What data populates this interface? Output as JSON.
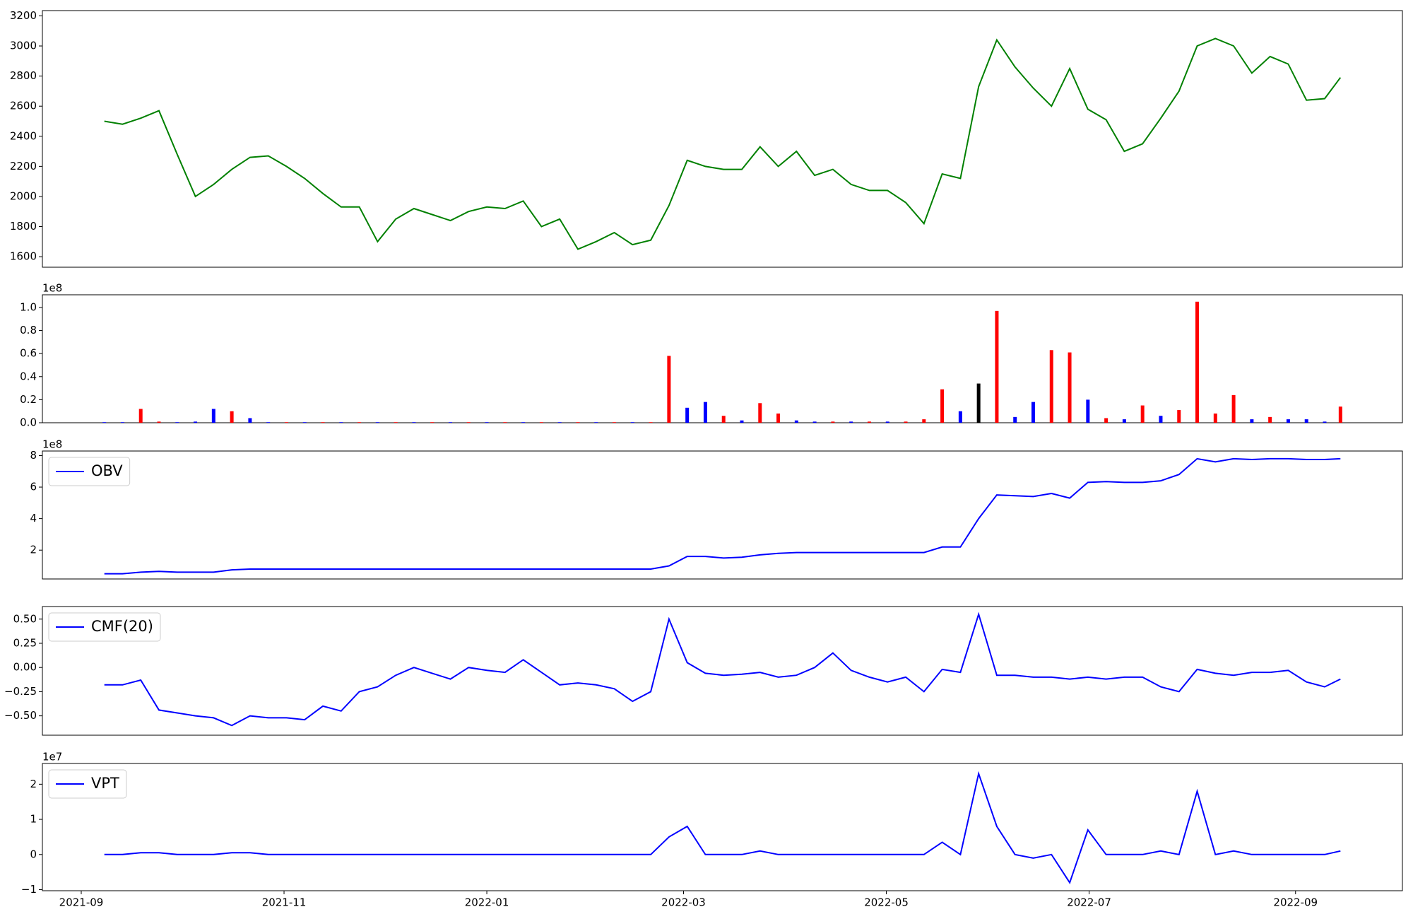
{
  "chart_data": [
    {
      "type": "line",
      "x": [
        2021.685,
        2021.7,
        2021.715,
        2021.73,
        2021.745,
        2021.76,
        2021.775,
        2021.79,
        2021.805,
        2021.82,
        2021.835,
        2021.85,
        2021.865,
        2021.88,
        2021.895,
        2021.91,
        2021.925,
        2021.94,
        2021.955,
        2021.97,
        2021.985,
        2022.0,
        2022.015,
        2022.03,
        2022.045,
        2022.06,
        2022.075,
        2022.09,
        2022.105,
        2022.12,
        2022.135,
        2022.15,
        2022.165,
        2022.18,
        2022.195,
        2022.21,
        2022.225,
        2022.24,
        2022.255,
        2022.27,
        2022.285,
        2022.3,
        2022.315,
        2022.33,
        2022.345,
        2022.36,
        2022.375,
        2022.39,
        2022.405,
        2022.42,
        2022.435,
        2022.45,
        2022.465,
        2022.48,
        2022.495,
        2022.51,
        2022.525,
        2022.54,
        2022.555,
        2022.57,
        2022.585,
        2022.6,
        2022.615,
        2022.63,
        2022.645,
        2022.66,
        2022.675,
        2022.69,
        2022.703
      ],
      "values": [
        2500,
        2480,
        2520,
        2570,
        2280,
        2000,
        2080,
        2180,
        2260,
        2270,
        2200,
        2120,
        2020,
        1930,
        1930,
        1700,
        1850,
        1920,
        1880,
        1840,
        1900,
        1930,
        1920,
        1970,
        1800,
        1850,
        1650,
        1700,
        1760,
        1680,
        1710,
        1940,
        2240,
        2200,
        2180,
        2180,
        2330,
        2200,
        2300,
        2140,
        2180,
        2080,
        2040,
        2040,
        1960,
        1820,
        2150,
        2120,
        2730,
        3040,
        2860,
        2720,
        2600,
        2850,
        2580,
        2510,
        2300,
        2350,
        2520,
        2700,
        3000,
        3050,
        3000,
        2820,
        2930,
        2880,
        2640,
        2650,
        2790
      ],
      "color": "green",
      "xlim": [
        2021.634,
        2022.754
      ],
      "ylim": [
        1530,
        3235
      ],
      "yticks": [
        1600,
        1800,
        2000,
        2200,
        2400,
        2600,
        2800,
        3000,
        3200
      ]
    },
    {
      "type": "bar",
      "offset_label": "1e8",
      "x": [
        2021.685,
        2021.7,
        2021.715,
        2021.73,
        2021.745,
        2021.76,
        2021.775,
        2021.79,
        2021.805,
        2021.82,
        2021.835,
        2021.85,
        2021.865,
        2021.88,
        2021.895,
        2021.91,
        2021.925,
        2021.94,
        2021.955,
        2021.97,
        2021.985,
        2022.0,
        2022.015,
        2022.03,
        2022.045,
        2022.06,
        2022.075,
        2022.09,
        2022.105,
        2022.12,
        2022.135,
        2022.15,
        2022.165,
        2022.18,
        2022.195,
        2022.21,
        2022.225,
        2022.24,
        2022.255,
        2022.27,
        2022.285,
        2022.3,
        2022.315,
        2022.33,
        2022.345,
        2022.36,
        2022.375,
        2022.39,
        2022.405,
        2022.42,
        2022.435,
        2022.45,
        2022.465,
        2022.48,
        2022.495,
        2022.51,
        2022.525,
        2022.54,
        2022.555,
        2022.57,
        2022.585,
        2022.6,
        2022.615,
        2022.63,
        2022.645,
        2022.66,
        2022.675,
        2022.69,
        2022.703
      ],
      "values": [
        0.005,
        0.005,
        0.12,
        0.01,
        0.005,
        0.01,
        0.12,
        0.1,
        0.04,
        0.005,
        0.005,
        0.005,
        0.005,
        0.005,
        0.005,
        0.005,
        0.005,
        0.005,
        0.005,
        0.005,
        0.005,
        0.005,
        0.005,
        0.005,
        0.005,
        0.005,
        0.005,
        0.005,
        0.005,
        0.005,
        0.005,
        0.58,
        0.13,
        0.18,
        0.06,
        0.02,
        0.17,
        0.08,
        0.02,
        0.01,
        0.01,
        0.01,
        0.01,
        0.01,
        0.01,
        0.03,
        0.29,
        0.1,
        0.34,
        0.97,
        0.05,
        0.18,
        0.63,
        0.61,
        0.2,
        0.04,
        0.03,
        0.15,
        0.06,
        0.11,
        1.05,
        0.08,
        0.24,
        0.03,
        0.05,
        0.03,
        0.03,
        0.01,
        0.14
      ],
      "colors": [
        "blue",
        "blue",
        "red",
        "red",
        "blue",
        "blue",
        "blue",
        "red",
        "blue",
        "blue",
        "red",
        "blue",
        "red",
        "blue",
        "red",
        "blue",
        "red",
        "blue",
        "red",
        "blue",
        "red",
        "blue",
        "red",
        "blue",
        "red",
        "blue",
        "red",
        "blue",
        "red",
        "blue",
        "red",
        "red",
        "blue",
        "blue",
        "red",
        "blue",
        "red",
        "red",
        "blue",
        "blue",
        "red",
        "blue",
        "red",
        "blue",
        "red",
        "red",
        "red",
        "blue",
        "black",
        "red",
        "blue",
        "blue",
        "red",
        "red",
        "blue",
        "red",
        "blue",
        "red",
        "blue",
        "red",
        "red",
        "red",
        "red",
        "blue",
        "red",
        "blue",
        "blue",
        "blue",
        "red"
      ],
      "xlim": [
        2021.634,
        2022.754
      ],
      "ylim": [
        0,
        1.11
      ],
      "yticks": [
        {
          "value": 0,
          "label": "0.0"
        },
        0.2,
        0.4,
        0.6,
        0.8,
        {
          "value": 1,
          "label": "1.0"
        }
      ]
    },
    {
      "type": "line",
      "offset_label": "1e8",
      "legend": "upper left",
      "x": [
        2021.685,
        2021.7,
        2021.715,
        2021.73,
        2021.745,
        2021.76,
        2021.775,
        2021.79,
        2021.805,
        2021.82,
        2021.835,
        2021.85,
        2021.865,
        2021.88,
        2021.895,
        2021.91,
        2021.925,
        2021.94,
        2021.955,
        2021.97,
        2021.985,
        2022.0,
        2022.015,
        2022.03,
        2022.045,
        2022.06,
        2022.075,
        2022.09,
        2022.105,
        2022.12,
        2022.135,
        2022.15,
        2022.165,
        2022.18,
        2022.195,
        2022.21,
        2022.225,
        2022.24,
        2022.255,
        2022.27,
        2022.285,
        2022.3,
        2022.315,
        2022.33,
        2022.345,
        2022.36,
        2022.375,
        2022.39,
        2022.405,
        2022.42,
        2022.435,
        2022.45,
        2022.465,
        2022.48,
        2022.495,
        2022.51,
        2022.525,
        2022.54,
        2022.555,
        2022.57,
        2022.585,
        2022.6,
        2022.615,
        2022.63,
        2022.645,
        2022.66,
        2022.675,
        2022.69,
        2022.703
      ],
      "series": [
        {
          "name": "OBV",
          "color": "blue",
          "values": [
            0.5,
            0.5,
            0.6,
            0.65,
            0.6,
            0.6,
            0.6,
            0.75,
            0.8,
            0.8,
            0.8,
            0.8,
            0.8,
            0.8,
            0.8,
            0.8,
            0.8,
            0.8,
            0.8,
            0.8,
            0.8,
            0.8,
            0.8,
            0.8,
            0.8,
            0.8,
            0.8,
            0.8,
            0.8,
            0.8,
            0.8,
            1.0,
            1.6,
            1.6,
            1.5,
            1.55,
            1.7,
            1.8,
            1.85,
            1.85,
            1.85,
            1.85,
            1.85,
            1.85,
            1.85,
            1.85,
            2.2,
            2.2,
            4.0,
            5.5,
            5.45,
            5.4,
            5.6,
            5.3,
            6.3,
            6.35,
            6.3,
            6.3,
            6.4,
            6.8,
            7.8,
            7.6,
            7.8,
            7.75,
            7.8,
            7.8,
            7.75,
            7.75,
            7.8
          ]
        }
      ],
      "xlim": [
        2021.634,
        2022.754
      ],
      "ylim": [
        0.17,
        8.29
      ],
      "yticks": [
        2,
        4,
        6,
        8
      ]
    },
    {
      "type": "line",
      "legend": "upper left",
      "x": [
        2021.685,
        2021.7,
        2021.715,
        2021.73,
        2021.745,
        2021.76,
        2021.775,
        2021.79,
        2021.805,
        2021.82,
        2021.835,
        2021.85,
        2021.865,
        2021.88,
        2021.895,
        2021.91,
        2021.925,
        2021.94,
        2021.955,
        2021.97,
        2021.985,
        2022.0,
        2022.015,
        2022.03,
        2022.045,
        2022.06,
        2022.075,
        2022.09,
        2022.105,
        2022.12,
        2022.135,
        2022.15,
        2022.165,
        2022.18,
        2022.195,
        2022.21,
        2022.225,
        2022.24,
        2022.255,
        2022.27,
        2022.285,
        2022.3,
        2022.315,
        2022.33,
        2022.345,
        2022.36,
        2022.375,
        2022.39,
        2022.405,
        2022.42,
        2022.435,
        2022.45,
        2022.465,
        2022.48,
        2022.495,
        2022.51,
        2022.525,
        2022.54,
        2022.555,
        2022.57,
        2022.585,
        2022.6,
        2022.615,
        2022.63,
        2022.645,
        2022.66,
        2022.675,
        2022.69,
        2022.703
      ],
      "series": [
        {
          "name": "CMF(20)",
          "color": "blue",
          "values": [
            -0.18,
            -0.18,
            -0.13,
            -0.44,
            -0.47,
            -0.5,
            -0.52,
            -0.6,
            -0.5,
            -0.52,
            -0.52,
            -0.54,
            -0.4,
            -0.45,
            -0.25,
            -0.2,
            -0.08,
            0.0,
            -0.06,
            -0.12,
            0.0,
            -0.03,
            -0.05,
            0.08,
            -0.05,
            -0.18,
            -0.16,
            -0.18,
            -0.22,
            -0.35,
            -0.25,
            0.5,
            0.05,
            -0.06,
            -0.08,
            -0.07,
            -0.05,
            -0.1,
            -0.08,
            0.0,
            0.15,
            -0.03,
            -0.1,
            -0.15,
            -0.1,
            -0.25,
            -0.02,
            -0.05,
            0.55,
            -0.08,
            -0.08,
            -0.1,
            -0.1,
            -0.12,
            -0.1,
            -0.12,
            -0.1,
            -0.1,
            -0.2,
            -0.25,
            -0.02,
            -0.06,
            -0.08,
            -0.05,
            -0.05,
            -0.03,
            -0.15,
            -0.2,
            -0.12
          ]
        }
      ],
      "xlim": [
        2021.634,
        2022.754
      ],
      "ylim": [
        -0.7,
        0.63
      ],
      "yticks": [
        {
          "value": -0.5,
          "label": "−0.50"
        },
        {
          "value": -0.25,
          "label": "−0.25"
        },
        {
          "value": 0,
          "label": "0.00"
        },
        0.25,
        {
          "value": 0.5,
          "label": "0.50"
        }
      ]
    },
    {
      "type": "line",
      "offset_label": "1e7",
      "legend": "upper left",
      "x": [
        2021.685,
        2021.7,
        2021.715,
        2021.73,
        2021.745,
        2021.76,
        2021.775,
        2021.79,
        2021.805,
        2021.82,
        2021.835,
        2021.85,
        2021.865,
        2021.88,
        2021.895,
        2021.91,
        2021.925,
        2021.94,
        2021.955,
        2021.97,
        2021.985,
        2022.0,
        2022.015,
        2022.03,
        2022.045,
        2022.06,
        2022.075,
        2022.09,
        2022.105,
        2022.12,
        2022.135,
        2022.15,
        2022.165,
        2022.18,
        2022.195,
        2022.21,
        2022.225,
        2022.24,
        2022.255,
        2022.27,
        2022.285,
        2022.3,
        2022.315,
        2022.33,
        2022.345,
        2022.36,
        2022.375,
        2022.39,
        2022.405,
        2022.42,
        2022.435,
        2022.45,
        2022.465,
        2022.48,
        2022.495,
        2022.51,
        2022.525,
        2022.54,
        2022.555,
        2022.57,
        2022.585,
        2022.6,
        2022.615,
        2022.63,
        2022.645,
        2022.66,
        2022.675,
        2022.69,
        2022.703
      ],
      "series": [
        {
          "name": "VPT",
          "color": "blue",
          "values": [
            0.0,
            0.0,
            0.05,
            0.05,
            0.0,
            0.0,
            0.0,
            0.05,
            0.05,
            0.0,
            0.0,
            0.0,
            0.0,
            0.0,
            0.0,
            0.0,
            0.0,
            0.0,
            0.0,
            0.0,
            0.0,
            0.0,
            0.0,
            0.0,
            0.0,
            0.0,
            0.0,
            0.0,
            0.0,
            0.0,
            0.0,
            0.5,
            0.8,
            0.0,
            0.0,
            0.0,
            0.1,
            0.0,
            0.0,
            0.0,
            0.0,
            0.0,
            0.0,
            0.0,
            0.0,
            0.0,
            0.35,
            0.0,
            2.3,
            0.8,
            0.0,
            -0.1,
            0.0,
            -0.8,
            0.7,
            0.0,
            0.0,
            0.0,
            0.1,
            0.0,
            1.8,
            0.0,
            0.1,
            0.0,
            0.0,
            0.0,
            0.0,
            0.0,
            0.1
          ]
        }
      ],
      "xlim": [
        2021.634,
        2022.754
      ],
      "ylim": [
        -1.03,
        2.59
      ],
      "yticks": [
        {
          "value": -1,
          "label": "−1"
        },
        0,
        1,
        2
      ],
      "xticks": [
        {
          "value": 2021.666,
          "label": "2021-09"
        },
        {
          "value": 2021.833,
          "label": "2021-11"
        },
        {
          "value": 2022.0,
          "label": "2022-01"
        },
        {
          "value": 2022.162,
          "label": "2022-03"
        },
        {
          "value": 2022.329,
          "label": "2022-05"
        },
        {
          "value": 2022.496,
          "label": "2022-07"
        },
        {
          "value": 2022.666,
          "label": "2022-09"
        }
      ]
    }
  ]
}
